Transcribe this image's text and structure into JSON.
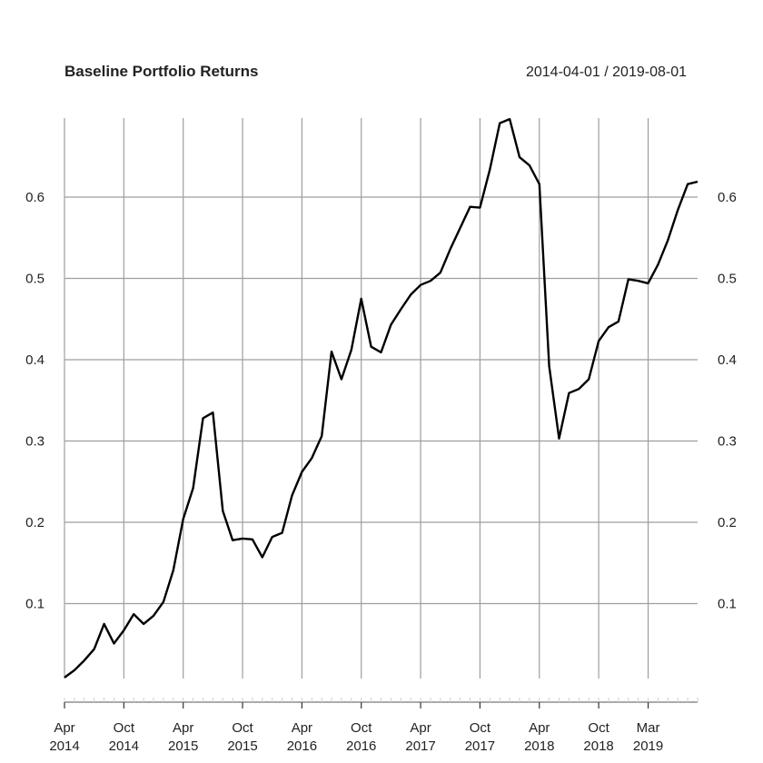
{
  "chart_data": {
    "type": "line",
    "title": "Baseline Portfolio Returns",
    "date_range": "2014-04-01 / 2019-08-01",
    "xlabel": "",
    "ylabel": "",
    "ylim": [
      0.0,
      0.7
    ],
    "grid": true,
    "x_ticks": [
      {
        "date": "2014-04",
        "label": "Apr\n2014"
      },
      {
        "date": "2014-10",
        "label": "Oct\n2014"
      },
      {
        "date": "2015-04",
        "label": "Apr\n2015"
      },
      {
        "date": "2015-10",
        "label": "Oct\n2015"
      },
      {
        "date": "2016-04",
        "label": "Apr\n2016"
      },
      {
        "date": "2016-10",
        "label": "Oct\n2016"
      },
      {
        "date": "2017-04",
        "label": "Apr\n2017"
      },
      {
        "date": "2017-10",
        "label": "Oct\n2017"
      },
      {
        "date": "2018-04",
        "label": "Apr\n2018"
      },
      {
        "date": "2018-10",
        "label": "Oct\n2018"
      },
      {
        "date": "2019-03",
        "label": "Mar\n2019"
      }
    ],
    "y_ticks": [
      {
        "value": 0.1,
        "label": "0.1"
      },
      {
        "value": 0.2,
        "label": "0.2"
      },
      {
        "value": 0.3,
        "label": "0.3"
      },
      {
        "value": 0.4,
        "label": "0.4"
      },
      {
        "value": 0.5,
        "label": "0.5"
      },
      {
        "value": 0.6,
        "label": "0.6"
      }
    ],
    "series": [
      {
        "color": "#000000",
        "x": [
          "2014-04",
          "2014-05",
          "2014-06",
          "2014-07",
          "2014-08",
          "2014-09",
          "2014-10",
          "2014-11",
          "2014-12",
          "2015-01",
          "2015-02",
          "2015-03",
          "2015-04",
          "2015-05",
          "2015-06",
          "2015-07",
          "2015-08",
          "2015-09",
          "2015-10",
          "2015-11",
          "2015-12",
          "2016-01",
          "2016-02",
          "2016-03",
          "2016-04",
          "2016-05",
          "2016-06",
          "2016-07",
          "2016-08",
          "2016-09",
          "2016-10",
          "2016-11",
          "2016-12",
          "2017-01",
          "2017-02",
          "2017-03",
          "2017-04",
          "2017-05",
          "2017-06",
          "2017-07",
          "2017-08",
          "2017-09",
          "2017-10",
          "2017-11",
          "2017-12",
          "2018-01",
          "2018-02",
          "2018-03",
          "2018-04",
          "2018-05",
          "2018-06",
          "2018-07",
          "2018-08",
          "2018-09",
          "2018-10",
          "2018-11",
          "2018-12",
          "2019-01",
          "2019-02",
          "2019-03",
          "2019-04",
          "2019-05",
          "2019-06",
          "2019-07",
          "2019-08"
        ],
        "values": [
          0.009,
          0.018,
          0.03,
          0.044,
          0.075,
          0.051,
          0.067,
          0.087,
          0.075,
          0.085,
          0.102,
          0.141,
          0.204,
          0.242,
          0.328,
          0.335,
          0.214,
          0.178,
          0.18,
          0.179,
          0.157,
          0.182,
          0.187,
          0.233,
          0.262,
          0.279,
          0.306,
          0.41,
          0.376,
          0.412,
          0.475,
          0.416,
          0.409,
          0.443,
          0.462,
          0.48,
          0.492,
          0.497,
          0.507,
          0.536,
          0.562,
          0.588,
          0.587,
          0.634,
          0.691,
          0.696,
          0.649,
          0.639,
          0.616,
          0.392,
          0.303,
          0.359,
          0.364,
          0.376,
          0.423,
          0.44,
          0.447,
          0.499,
          0.497,
          0.494,
          0.517,
          0.547,
          0.584,
          0.616,
          0.619
        ]
      }
    ]
  }
}
